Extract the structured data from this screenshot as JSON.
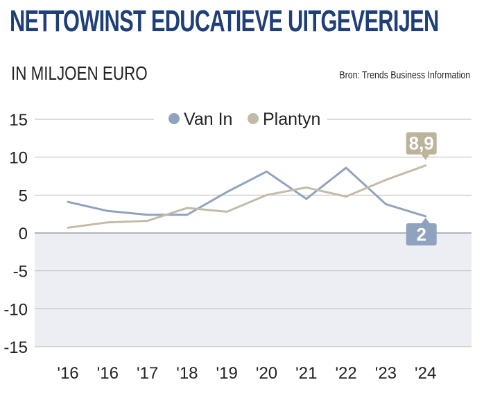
{
  "title": "NETTOWINST EDUCATIEVE UITGEVERIJEN",
  "subtitle": "IN MILJOEN EURO",
  "source": "Bron: Trends Business Information",
  "colors": {
    "van_in": "#8fa3bf",
    "plantyn": "#c3bba8",
    "title": "#1f3f78",
    "negative_band": "#eceef3",
    "callout_van_in": "#8fa3bf",
    "callout_plantyn": "#bdb39a"
  },
  "chart_data": {
    "type": "line",
    "categories": [
      "'16",
      "'16",
      "'17",
      "'18",
      "'19",
      "'20",
      "'21",
      "'22",
      "'23",
      "'24"
    ],
    "series": [
      {
        "name": "Van In",
        "values": [
          4.1,
          2.9,
          2.4,
          2.4,
          5.4,
          8.1,
          4.5,
          8.6,
          3.8,
          2.2
        ]
      },
      {
        "name": "Plantyn",
        "values": [
          0.7,
          1.4,
          1.6,
          3.3,
          2.8,
          5.0,
          6.0,
          4.8,
          7.0,
          8.9
        ]
      }
    ],
    "y_ticks": [
      "15",
      "10",
      "5",
      "0",
      "-5",
      "-10",
      "-15"
    ],
    "y_tick_values": [
      15,
      10,
      5,
      0,
      -5,
      -10,
      -15
    ],
    "ylim": [
      -15,
      15
    ],
    "grid": true,
    "legend_position": "top-center",
    "annotations": [
      {
        "series": "Plantyn",
        "label": "8,9",
        "category_index": 9,
        "value": 8.9
      },
      {
        "series": "Van In",
        "label": "2",
        "category_index": 9,
        "value": 2.2
      }
    ]
  }
}
